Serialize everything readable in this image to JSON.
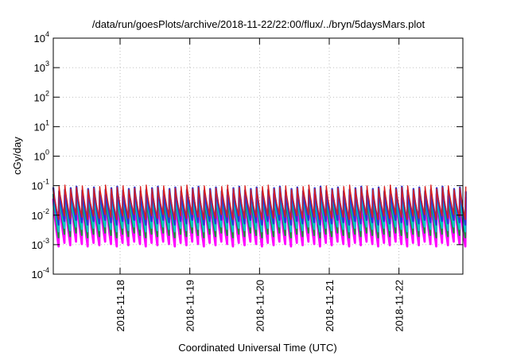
{
  "chart_data": {
    "type": "line",
    "title": "/data/run/goesPlots/archive/2018-11-22/22:00/flux/../bryn/5daysMars.plot",
    "xlabel": "Coordinated Universal Time (UTC)",
    "ylabel": "cGy/day",
    "yscale": "log",
    "ylim": [
      0.0001,
      10000
    ],
    "y_ticks": [
      {
        "base": "10",
        "exp": "-4"
      },
      {
        "base": "10",
        "exp": "-3"
      },
      {
        "base": "10",
        "exp": "-2"
      },
      {
        "base": "10",
        "exp": "-1"
      },
      {
        "base": "10",
        "exp": "0"
      },
      {
        "base": "10",
        "exp": "1"
      },
      {
        "base": "10",
        "exp": "2"
      },
      {
        "base": "10",
        "exp": "3"
      },
      {
        "base": "10",
        "exp": "4"
      }
    ],
    "xlim": [
      "2018-11-17 01:00",
      "2018-11-22 22:00"
    ],
    "x_ticks": [
      "2018-11-18",
      "2018-11-19",
      "2018-11-20",
      "2018-11-21",
      "2018-11-22"
    ],
    "grid": true,
    "cycle_hours": 2,
    "series": [
      {
        "color": "#ff00ff",
        "peak": 0.045,
        "trough": 0.0011
      },
      {
        "color": "#1e8c3c",
        "peak": 0.05,
        "trough": 0.0022
      },
      {
        "color": "#00c8c8",
        "peak": 0.06,
        "trough": 0.0035
      },
      {
        "color": "#2a3ad6",
        "peak": 0.08,
        "trough": 0.006
      },
      {
        "color": "#d81e1e",
        "peak": 0.09,
        "trough": 0.009
      }
    ]
  }
}
